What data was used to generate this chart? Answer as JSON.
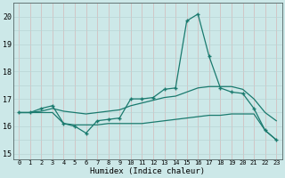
{
  "xlabel": "Humidex (Indice chaleur)",
  "bg_color": "#cce8e8",
  "grid_color_h": "#b8d4d4",
  "grid_color_v": "#d4b8b8",
  "line_color": "#1a7a6e",
  "xlim": [
    -0.5,
    23.5
  ],
  "ylim": [
    14.8,
    20.5
  ],
  "yticks": [
    15,
    16,
    17,
    18,
    19,
    20
  ],
  "xticks": [
    0,
    1,
    2,
    3,
    4,
    5,
    6,
    7,
    8,
    9,
    10,
    11,
    12,
    13,
    14,
    15,
    16,
    17,
    18,
    19,
    20,
    21,
    22,
    23
  ],
  "series1_x": [
    0,
    1,
    2,
    3,
    4,
    5,
    6,
    7,
    8,
    9,
    10,
    11,
    12,
    13,
    14,
    15,
    16,
    17,
    18,
    19,
    20,
    21,
    22,
    23
  ],
  "series1_y": [
    16.5,
    16.5,
    16.65,
    16.75,
    16.1,
    16.0,
    15.75,
    16.2,
    16.25,
    16.3,
    17.0,
    17.0,
    17.05,
    17.35,
    17.4,
    19.85,
    20.1,
    18.55,
    17.4,
    17.25,
    17.2,
    16.65,
    15.85,
    15.5
  ],
  "series2_x": [
    0,
    1,
    2,
    3,
    4,
    5,
    6,
    7,
    8,
    9,
    10,
    11,
    12,
    13,
    14,
    15,
    16,
    17,
    18,
    19,
    20,
    21,
    22,
    23
  ],
  "series2_y": [
    16.5,
    16.5,
    16.5,
    16.5,
    16.1,
    16.05,
    16.05,
    16.05,
    16.1,
    16.1,
    16.1,
    16.1,
    16.15,
    16.2,
    16.25,
    16.3,
    16.35,
    16.4,
    16.4,
    16.45,
    16.45,
    16.45,
    15.85,
    15.5
  ],
  "series3_x": [
    0,
    1,
    2,
    3,
    4,
    5,
    6,
    7,
    8,
    9,
    10,
    11,
    12,
    13,
    14,
    15,
    16,
    17,
    18,
    19,
    20,
    21,
    22,
    23
  ],
  "series3_y": [
    16.5,
    16.5,
    16.55,
    16.65,
    16.55,
    16.5,
    16.45,
    16.5,
    16.55,
    16.6,
    16.75,
    16.85,
    16.95,
    17.05,
    17.1,
    17.25,
    17.4,
    17.45,
    17.45,
    17.45,
    17.35,
    17.0,
    16.5,
    16.2
  ]
}
